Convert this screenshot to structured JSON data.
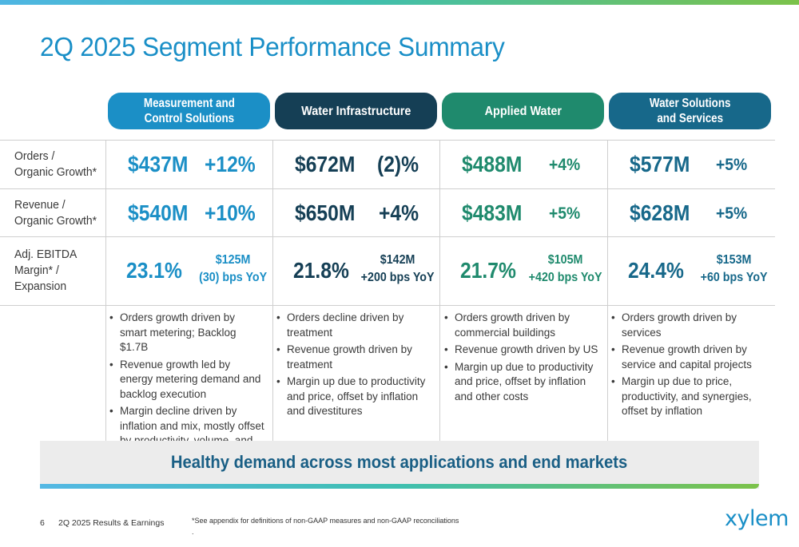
{
  "title": "2Q 2025 Segment Performance Summary",
  "segments": [
    {
      "name_line1": "Measurement and",
      "name_line2": "Control Solutions",
      "color": "#1b8fc6"
    },
    {
      "name_line1": "Water Infrastructure",
      "name_line2": "",
      "color": "#153f55"
    },
    {
      "name_line1": "Applied Water",
      "name_line2": "",
      "color": "#1f8a6d"
    },
    {
      "name_line1": "Water Solutions",
      "name_line2": "and Services",
      "color": "#17688a"
    }
  ],
  "row_labels": {
    "orders": [
      "Orders /",
      "Organic Growth*"
    ],
    "revenue": [
      "Revenue /",
      "Organic Growth*"
    ],
    "ebitda": [
      "Adj. EBITDA",
      "Margin* /",
      "Expansion"
    ]
  },
  "metrics": [
    {
      "orders": "$437M",
      "orders_growth": "+12%",
      "revenue": "$540M",
      "revenue_growth": "+10%",
      "margin": "23.1%",
      "ebitda": "$125M",
      "expansion": "(30) bps YoY"
    },
    {
      "orders": "$672M",
      "orders_growth": "(2)%",
      "revenue": "$650M",
      "revenue_growth": "+4%",
      "margin": "21.8%",
      "ebitda": "$142M",
      "expansion": "+200 bps YoY"
    },
    {
      "orders": "$488M",
      "orders_growth": "+4%",
      "revenue": "$483M",
      "revenue_growth": "+5%",
      "margin": "21.7%",
      "ebitda": "$105M",
      "expansion": "+420 bps YoY"
    },
    {
      "orders": "$577M",
      "orders_growth": "+5%",
      "revenue": "$628M",
      "revenue_growth": "+5%",
      "margin": "24.4%",
      "ebitda": "$153M",
      "expansion": "+60 bps YoY"
    }
  ],
  "commentary": [
    [
      "Orders growth driven by smart metering; Backlog $1.7B",
      "Revenue growth led by energy metering demand and backlog execution",
      "Margin decline driven by inflation and mix, mostly offset by productivity, volume, and price"
    ],
    [
      "Orders decline driven by treatment",
      "Revenue growth driven by treatment",
      "Margin up due to productivity and price, offset by inflation and divestitures"
    ],
    [
      "Orders growth driven by commercial buildings",
      "Revenue growth driven by US",
      "Margin up due to productivity and price, offset by inflation and other costs"
    ],
    [
      "Orders growth driven by services",
      "Revenue growth driven by service and capital projects",
      "Margin up due to price, productivity, and synergies, offset by inflation"
    ]
  ],
  "banner": "Healthy demand across most applications and end markets",
  "footer": {
    "page_number": "6",
    "deck_title": "2Q 2025 Results & Earnings",
    "note": "*See appendix for definitions of non-GAAP measures and non-GAAP reconciliations",
    "note_mark": "."
  },
  "logo": "xylem"
}
